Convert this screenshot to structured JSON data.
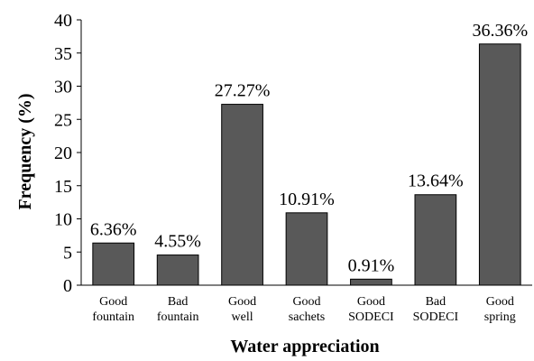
{
  "chart_data": {
    "type": "bar",
    "categories": [
      "Good fountain",
      "Bad fountain",
      "Good well",
      "Good sachets",
      "Good SODECI",
      "Bad SODECI",
      "Good spring"
    ],
    "values": [
      6.36,
      4.55,
      27.27,
      10.91,
      0.91,
      13.64,
      36.36
    ],
    "value_labels": [
      "6.36%",
      "4.55%",
      "27.27%",
      "10.91%",
      "0.91%",
      "13.64%",
      "36.36%"
    ],
    "color": "#595959",
    "xlabel": "Water appreciation",
    "ylabel": "Frequency (%)",
    "ylim": [
      0,
      40
    ],
    "yticks": [
      0,
      5,
      10,
      15,
      20,
      25,
      30,
      35,
      40
    ],
    "grid": false
  }
}
